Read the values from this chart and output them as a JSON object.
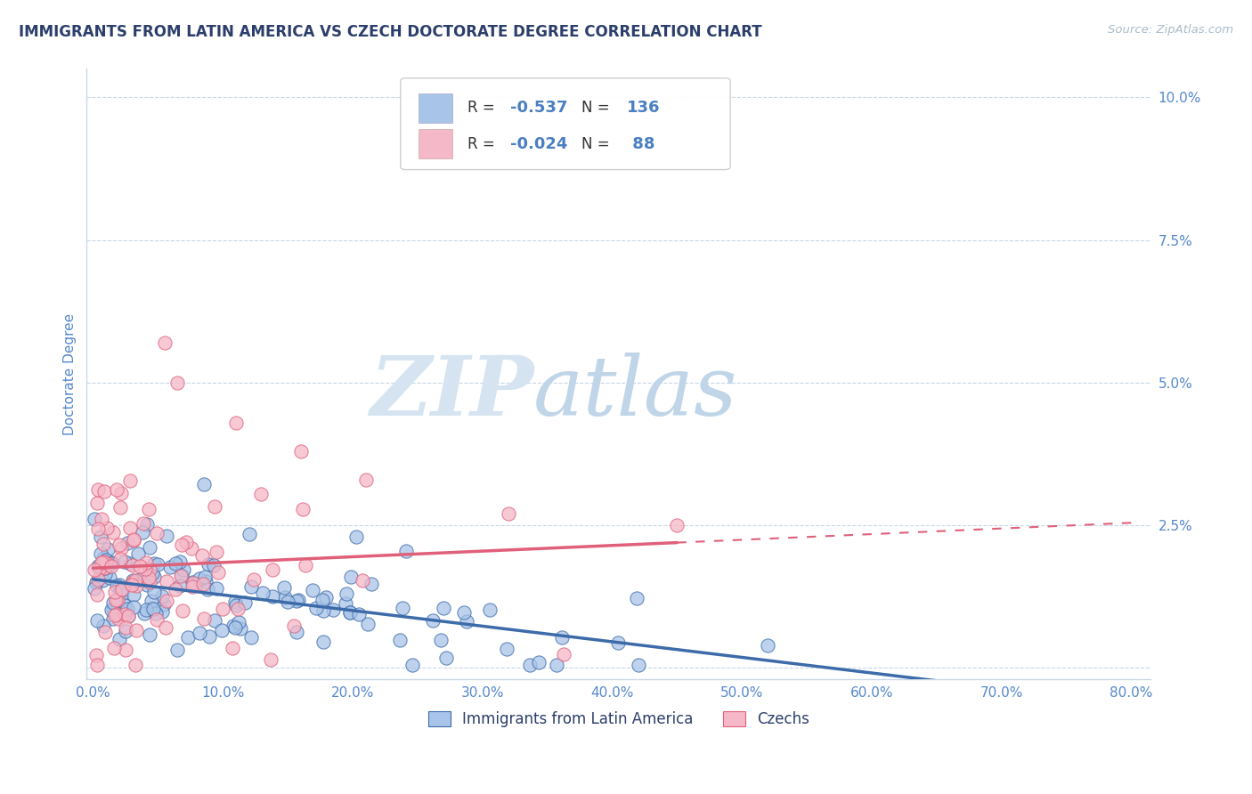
{
  "title": "IMMIGRANTS FROM LATIN AMERICA VS CZECH DOCTORATE DEGREE CORRELATION CHART",
  "source": "Source: ZipAtlas.com",
  "ylabel": "Doctorate Degree",
  "xlim": [
    -0.005,
    0.815
  ],
  "ylim": [
    -0.002,
    0.105
  ],
  "xticks": [
    0.0,
    0.1,
    0.2,
    0.3,
    0.4,
    0.5,
    0.6,
    0.7,
    0.8
  ],
  "xticklabels": [
    "0.0%",
    "10.0%",
    "20.0%",
    "30.0%",
    "40.0%",
    "50.0%",
    "60.0%",
    "70.0%",
    "80.0%"
  ],
  "yticks": [
    0.0,
    0.025,
    0.05,
    0.075,
    0.1
  ],
  "yticklabels": [
    "",
    "2.5%",
    "5.0%",
    "7.5%",
    "10.0%"
  ],
  "blue_R": -0.537,
  "blue_N": 136,
  "pink_R": -0.024,
  "pink_N": 88,
  "blue_color": "#a8c4e8",
  "pink_color": "#f5b8c8",
  "blue_line_color": "#3d6baa",
  "pink_line_color": "#e0607a",
  "background_color": "#ffffff",
  "grid_color": "#c8d8e8",
  "title_color": "#2c3e6b",
  "watermark_zip_color": "#d5e4f0",
  "watermark_atlas_color": "#c0d5e8",
  "axis_label_color": "#5588cc",
  "tick_color": "#5588cc",
  "legend_text_color": "#333333",
  "legend_value_color": "#4a7fc1",
  "source_color": "#aabccc"
}
